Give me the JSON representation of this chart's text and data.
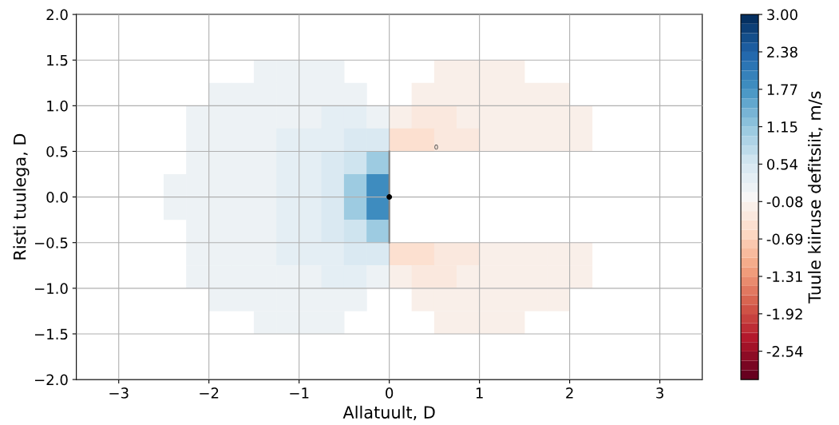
{
  "chart_data": {
    "type": "scatter",
    "marker": "square",
    "xlabel": "Allatuult, D",
    "ylabel": "Risti tuulega, D",
    "clabel": "Tuule kiiruse defitsiit, m/s",
    "x": [
      -1.375,
      -1.125,
      -0.875,
      -0.625,
      0.625,
      0.875,
      1.125,
      1.375,
      -1.875,
      -1.625,
      -1.375,
      -1.125,
      -0.875,
      -0.625,
      -0.375,
      0.375,
      0.625,
      0.875,
      1.125,
      1.375,
      1.625,
      1.875,
      -2.125,
      -1.875,
      -1.625,
      -1.375,
      -1.125,
      -0.875,
      -0.625,
      -0.375,
      -0.125,
      0.125,
      0.375,
      0.625,
      0.875,
      1.125,
      1.375,
      1.625,
      1.875,
      2.125,
      -2.125,
      -1.875,
      -1.625,
      -1.375,
      -1.125,
      -0.875,
      -0.625,
      -0.375,
      -0.125,
      0.125,
      0.375,
      0.625,
      0.875,
      1.125,
      1.375,
      1.625,
      1.875,
      2.125,
      -2.125,
      -1.875,
      -1.625,
      -1.375,
      -1.125,
      -0.875,
      -0.625,
      -0.375,
      -0.125,
      -2.375,
      -2.125,
      -1.875,
      -1.625,
      -1.375,
      -1.125,
      -0.875,
      -0.625,
      -0.375,
      -0.125,
      -2.375,
      -2.125,
      -1.875,
      -1.625,
      -1.375,
      -1.125,
      -0.875,
      -0.625,
      -0.375,
      -0.125,
      -2.125,
      -1.875,
      -1.625,
      -1.375,
      -1.125,
      -0.875,
      -0.625,
      -0.375,
      -0.125,
      -2.125,
      -1.875,
      -1.625,
      -1.375,
      -1.125,
      -0.875,
      -0.625,
      -0.375,
      -0.125,
      0.125,
      0.375,
      0.625,
      0.875,
      1.125,
      1.375,
      1.625,
      1.875,
      2.125,
      -2.125,
      -1.875,
      -1.625,
      -1.375,
      -1.125,
      -0.875,
      -0.625,
      -0.375,
      -0.125,
      0.125,
      0.375,
      0.625,
      0.875,
      1.125,
      1.375,
      1.625,
      1.875,
      2.125,
      -1.875,
      -1.625,
      -1.375,
      -1.125,
      -0.875,
      -0.625,
      -0.375,
      0.375,
      0.625,
      0.875,
      1.125,
      1.375,
      1.625,
      1.875,
      -1.375,
      -1.125,
      -0.875,
      -0.625,
      0.625,
      0.875,
      1.125,
      1.375
    ],
    "values": [
      1.375,
      1.375,
      1.375,
      1.375,
      1.375,
      1.375,
      1.375,
      1.375,
      1.125,
      1.125,
      1.125,
      1.125,
      1.125,
      1.125,
      1.125,
      1.125,
      1.125,
      1.125,
      1.125,
      1.125,
      1.125,
      1.125,
      0.875,
      0.875,
      0.875,
      0.875,
      0.875,
      0.875,
      0.875,
      0.875,
      0.875,
      0.875,
      0.875,
      0.875,
      0.875,
      0.875,
      0.875,
      0.875,
      0.875,
      0.875,
      0.625,
      0.625,
      0.625,
      0.625,
      0.625,
      0.625,
      0.625,
      0.625,
      0.625,
      0.625,
      0.625,
      0.625,
      0.625,
      0.625,
      0.625,
      0.625,
      0.625,
      0.625,
      0.375,
      0.375,
      0.375,
      0.375,
      0.375,
      0.375,
      0.375,
      0.375,
      0.375,
      0.125,
      0.125,
      0.125,
      0.125,
      0.125,
      0.125,
      0.125,
      0.125,
      0.125,
      0.125,
      -0.125,
      -0.125,
      -0.125,
      -0.125,
      -0.125,
      -0.125,
      -0.125,
      -0.125,
      -0.125,
      -0.125,
      -0.375,
      -0.375,
      -0.375,
      -0.375,
      -0.375,
      -0.375,
      -0.375,
      -0.375,
      -0.375,
      -0.625,
      -0.625,
      -0.625,
      -0.625,
      -0.625,
      -0.625,
      -0.625,
      -0.625,
      -0.625,
      -0.625,
      -0.625,
      -0.625,
      -0.625,
      -0.625,
      -0.625,
      -0.625,
      -0.625,
      -0.625,
      -0.875,
      -0.875,
      -0.875,
      -0.875,
      -0.875,
      -0.875,
      -0.875,
      -0.875,
      -0.875,
      -0.875,
      -0.875,
      -0.875,
      -0.875,
      -0.875,
      -0.875,
      -0.875,
      -0.875,
      -0.875,
      -1.125,
      -1.125,
      -1.125,
      -1.125,
      -1.125,
      -1.125,
      -1.125,
      -1.125,
      -1.125,
      -1.125,
      -1.125,
      -1.125,
      -1.125,
      -1.125,
      -1.375,
      -1.375,
      -1.375,
      -1.375,
      -1.375,
      -1.375,
      -1.375,
      -1.375
    ],
    "cvalues": [
      0.15,
      0.15,
      0.15,
      0.15,
      -0.15,
      -0.15,
      -0.15,
      -0.15,
      0.15,
      0.15,
      0.15,
      0.15,
      0.15,
      0.15,
      0.15,
      -0.15,
      -0.15,
      -0.15,
      -0.15,
      -0.15,
      -0.15,
      -0.15,
      0.15,
      0.15,
      0.15,
      0.15,
      0.15,
      0.15,
      0.3,
      0.3,
      0.15,
      -0.15,
      -0.3,
      -0.3,
      -0.15,
      -0.15,
      -0.15,
      -0.15,
      -0.15,
      -0.15,
      0.15,
      0.15,
      0.15,
      0.15,
      0.3,
      0.3,
      0.3,
      0.45,
      0.45,
      -0.45,
      -0.45,
      -0.3,
      -0.3,
      -0.15,
      -0.15,
      -0.15,
      -0.15,
      -0.15,
      0.15,
      0.15,
      0.15,
      0.15,
      0.3,
      0.3,
      0.45,
      0.6,
      1.0,
      0.15,
      0.15,
      0.15,
      0.15,
      0.15,
      0.3,
      0.3,
      0.45,
      1.0,
      1.9,
      0.15,
      0.15,
      0.15,
      0.15,
      0.15,
      0.3,
      0.3,
      0.45,
      1.0,
      1.9,
      0.15,
      0.15,
      0.15,
      0.15,
      0.3,
      0.3,
      0.45,
      0.6,
      1.0,
      0.15,
      0.15,
      0.15,
      0.15,
      0.3,
      0.3,
      0.3,
      0.45,
      0.45,
      -0.45,
      -0.45,
      -0.3,
      -0.3,
      -0.15,
      -0.15,
      -0.15,
      -0.15,
      -0.15,
      0.15,
      0.15,
      0.15,
      0.15,
      0.15,
      0.15,
      0.3,
      0.3,
      0.15,
      -0.15,
      -0.3,
      -0.3,
      -0.15,
      -0.15,
      -0.15,
      -0.15,
      -0.15,
      -0.15,
      0.15,
      0.15,
      0.15,
      0.15,
      0.15,
      0.15,
      0.15,
      -0.15,
      -0.15,
      -0.15,
      -0.15,
      -0.15,
      -0.15,
      -0.15,
      0.15,
      0.15,
      0.15,
      0.15,
      -0.15,
      -0.15,
      -0.15,
      -0.15
    ],
    "xlim": [
      -3.47,
      3.47
    ],
    "ylim": [
      -2,
      2
    ],
    "xticks": [
      {
        "value": -3,
        "label": "−3"
      },
      {
        "value": -2,
        "label": "−2"
      },
      {
        "value": -1,
        "label": "−1"
      },
      0,
      1,
      2,
      3
    ],
    "yticks": [
      {
        "value": -2,
        "label": "−2.0"
      },
      {
        "value": -1.5,
        "label": "−1.5"
      },
      {
        "value": -1,
        "label": "−1.0"
      },
      {
        "value": -0.5,
        "label": "−0.5"
      },
      {
        "value": 0,
        "label": "0.0"
      },
      {
        "value": 0.5,
        "label": "0.5"
      },
      {
        "value": 1,
        "label": "1.0"
      },
      {
        "value": 1.5,
        "label": "1.5"
      },
      {
        "value": 2,
        "label": "2.0"
      }
    ],
    "clim": [
      -3,
      3
    ],
    "cticks": [
      {
        "value": 3,
        "label": "3.00"
      },
      {
        "value": 2.385,
        "label": "2.38"
      },
      {
        "value": 1.77,
        "label": "1.77"
      },
      {
        "value": 1.155,
        "label": "1.15"
      },
      {
        "value": 0.54,
        "label": "0.54"
      },
      {
        "value": -0.075,
        "label": "-0.08"
      },
      {
        "value": -0.69,
        "label": "-0.69"
      },
      {
        "value": -1.305,
        "label": "-1.31"
      },
      {
        "value": -1.92,
        "label": "-1.92"
      },
      {
        "value": -2.535,
        "label": "-2.54"
      }
    ],
    "annotations": [
      "0"
    ],
    "grid": true
  }
}
